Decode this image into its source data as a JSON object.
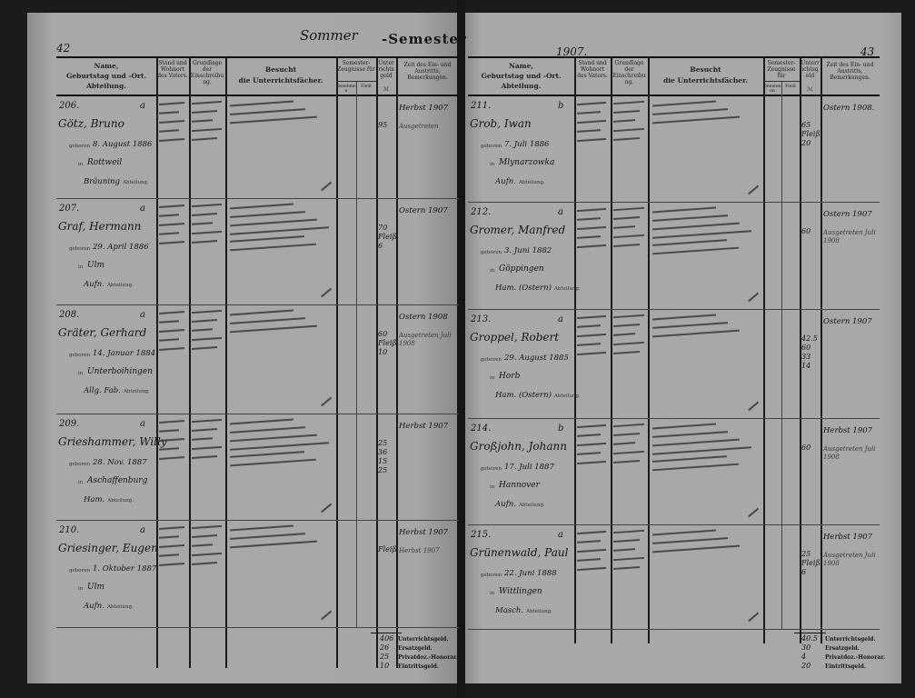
{
  "header": {
    "left_page_number": "42",
    "semester_handwritten": "Sommer",
    "semester_printed": "-Semester",
    "year": "1907.",
    "right_page_number": "43"
  },
  "columns": {
    "name": "Name,",
    "birth": "Geburtstag und -Ort.",
    "dept": "Abteilung.",
    "stand": "Stand und Wohnort des Vaters.",
    "grundlage": "Grundlage der Einschreibung.",
    "besucht_title": "Besucht",
    "besucht_sub": "die Unterrichtsfächer.",
    "semester": "Semester-Zeugnisse für",
    "sem_sub1": "Benehmen",
    "sem_sub2": "Fleiß",
    "geld": "Unterrichtsgeld",
    "geld_unit": "ℳ",
    "zeit": "Zeit des Ein- und Austritts, Bemerkungen."
  },
  "labels": {
    "geboren": "geboren",
    "in": "in",
    "abteilung": "Abteilung."
  },
  "left_entries": [
    {
      "no": "206.",
      "cls": "a",
      "name": "Götz, Bruno",
      "born": "8. August 1886",
      "place": "Rottweil",
      "dept": "Bräuning",
      "fee": [
        "95"
      ],
      "remarks": [
        "Herbst 1907",
        "Ausgetreten"
      ]
    },
    {
      "no": "207.",
      "cls": "a",
      "name": "Graf, Hermann",
      "born": "29. April 1886",
      "place": "Ulm",
      "dept": "Aufn.",
      "fee": [
        "70",
        "Fleiß",
        "6"
      ],
      "remarks": [
        "Ostern 1907"
      ]
    },
    {
      "no": "208.",
      "cls": "a",
      "name": "Gräter, Gerhard",
      "born": "14. Januar 1884",
      "place": "Unterboihingen",
      "dept": "Allg. Fab.",
      "fee": [
        "60",
        "Fleiß",
        "10"
      ],
      "remarks": [
        "Ostern 1908",
        "Ausgetreten Juli 1908"
      ]
    },
    {
      "no": "209.",
      "cls": "a",
      "name": "Grieshammer, Willy",
      "born": "28. Nov. 1887",
      "place": "Aschaffenburg",
      "dept": "Ham.",
      "fee": [
        "25",
        "36",
        "15",
        "25"
      ],
      "remarks": [
        "Herbst 1907"
      ]
    },
    {
      "no": "210.",
      "cls": "a",
      "name": "Griesinger, Eugen",
      "born": "1. Oktober 1887",
      "place": "Ulm",
      "dept": "Aufn.",
      "fee": [
        "Fleiß"
      ],
      "remarks": [
        "Herbst 1907",
        "Herbst 1907"
      ]
    }
  ],
  "right_entries": [
    {
      "no": "211.",
      "cls": "b",
      "name": "Grob, Iwan",
      "born": "7. Juli 1886",
      "place": "Mlynarzowka",
      "dept": "Aufn.",
      "fee": [
        "65",
        "Fleiß",
        "20"
      ],
      "remarks": [
        "Ostern 1908."
      ]
    },
    {
      "no": "212.",
      "cls": "a",
      "name": "Gromer, Manfred",
      "born": "3. Juni 1882",
      "place": "Göppingen",
      "dept": "Ham. (Ostern)",
      "fee": [
        "60"
      ],
      "remarks": [
        "Ostern 1907",
        "Ausgetreten Juli 1908"
      ]
    },
    {
      "no": "213.",
      "cls": "a",
      "name": "Groppel, Robert",
      "born": "29. August 1885",
      "place": "Horb",
      "dept": "Ham. (Ostern)",
      "fee": [
        "42.5",
        "60",
        "33",
        "14"
      ],
      "remarks": [
        "Ostern 1907"
      ]
    },
    {
      "no": "214.",
      "cls": "b",
      "name": "Großjohn, Johann",
      "born": "17. Juli 1887",
      "place": "Hannover",
      "dept": "Aufn.",
      "fee": [
        "60"
      ],
      "remarks": [
        "Herbst 1907",
        "Ausgetreten Juli 1908"
      ]
    },
    {
      "no": "215.",
      "cls": "a",
      "name": "Grünenwald, Paul",
      "born": "22. Juni 1888",
      "place": "Wittlingen",
      "dept": "Masch.",
      "fee": [
        "25",
        "Fleiß",
        "6"
      ],
      "remarks": [
        "Herbst 1907",
        "Ausgetreten Juli 1908"
      ]
    }
  ],
  "footer": {
    "labels": [
      "Unterrichtsgeld.",
      "Ersatzgeld.",
      "Privatdoz.-Honorar.",
      "Eintrittsgeld."
    ],
    "left_values": [
      "406",
      "26",
      "25",
      "10"
    ],
    "right_values": [
      "40.5",
      "30",
      "4",
      "20"
    ]
  }
}
